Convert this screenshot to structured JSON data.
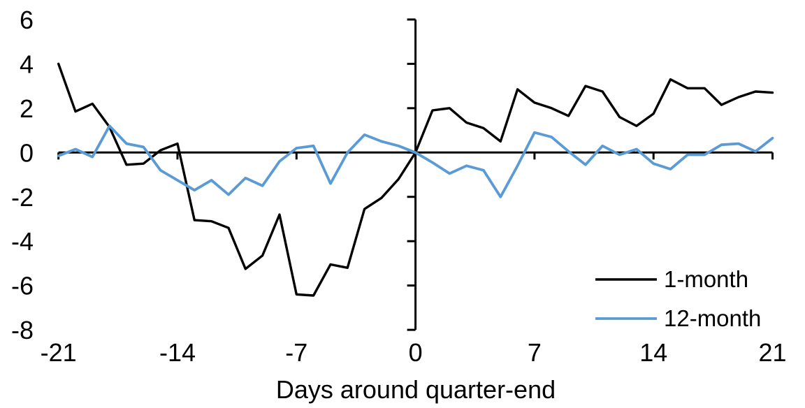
{
  "chart_data": {
    "type": "line",
    "title": "",
    "xlabel": "Days around quarter-end",
    "ylabel": "",
    "x": [
      -21,
      -20,
      -19,
      -18,
      -17,
      -16,
      -15,
      -14,
      -13,
      -12,
      -11,
      -10,
      -9,
      -8,
      -7,
      -6,
      -5,
      -4,
      -3,
      -2,
      -1,
      0,
      1,
      2,
      3,
      4,
      5,
      6,
      7,
      8,
      9,
      10,
      11,
      12,
      13,
      14,
      15,
      16,
      17,
      18,
      19,
      20,
      21
    ],
    "series": [
      {
        "name": "1-month",
        "color": "#000000",
        "values": [
          4.0,
          1.85,
          2.2,
          1.15,
          -0.55,
          -0.5,
          0.1,
          0.4,
          -3.05,
          -3.1,
          -3.4,
          -5.25,
          -4.65,
          -2.8,
          -6.4,
          -6.45,
          -5.05,
          -5.2,
          -2.55,
          -2.05,
          -1.2,
          0.0,
          1.9,
          2.0,
          1.35,
          1.1,
          0.5,
          2.85,
          2.25,
          2.0,
          1.65,
          3.0,
          2.75,
          1.6,
          1.2,
          1.75,
          3.3,
          2.9,
          2.9,
          2.15,
          2.5,
          2.75,
          2.7
        ]
      },
      {
        "name": "12-month",
        "color": "#5B9BD5",
        "values": [
          -0.15,
          0.15,
          -0.2,
          1.2,
          0.4,
          0.25,
          -0.8,
          -1.25,
          -1.7,
          -1.25,
          -1.9,
          -1.15,
          -1.5,
          -0.4,
          0.2,
          0.3,
          -1.4,
          0.0,
          0.8,
          0.5,
          0.3,
          0.0,
          -0.45,
          -0.95,
          -0.6,
          -0.8,
          -2.0,
          -0.6,
          0.9,
          0.7,
          0.05,
          -0.55,
          0.3,
          -0.1,
          0.15,
          -0.5,
          -0.75,
          -0.1,
          -0.1,
          0.35,
          0.4,
          0.05,
          0.65
        ]
      }
    ],
    "xticks": [
      -21,
      -14,
      -7,
      0,
      7,
      14,
      21
    ],
    "yticks": [
      6,
      4,
      2,
      0,
      -2,
      -4,
      -6,
      -8
    ],
    "xlim": [
      -21,
      21
    ],
    "ylim": [
      -8,
      6
    ],
    "grid": false,
    "axis_color": "#000000",
    "legend_position": "bottom-right"
  }
}
